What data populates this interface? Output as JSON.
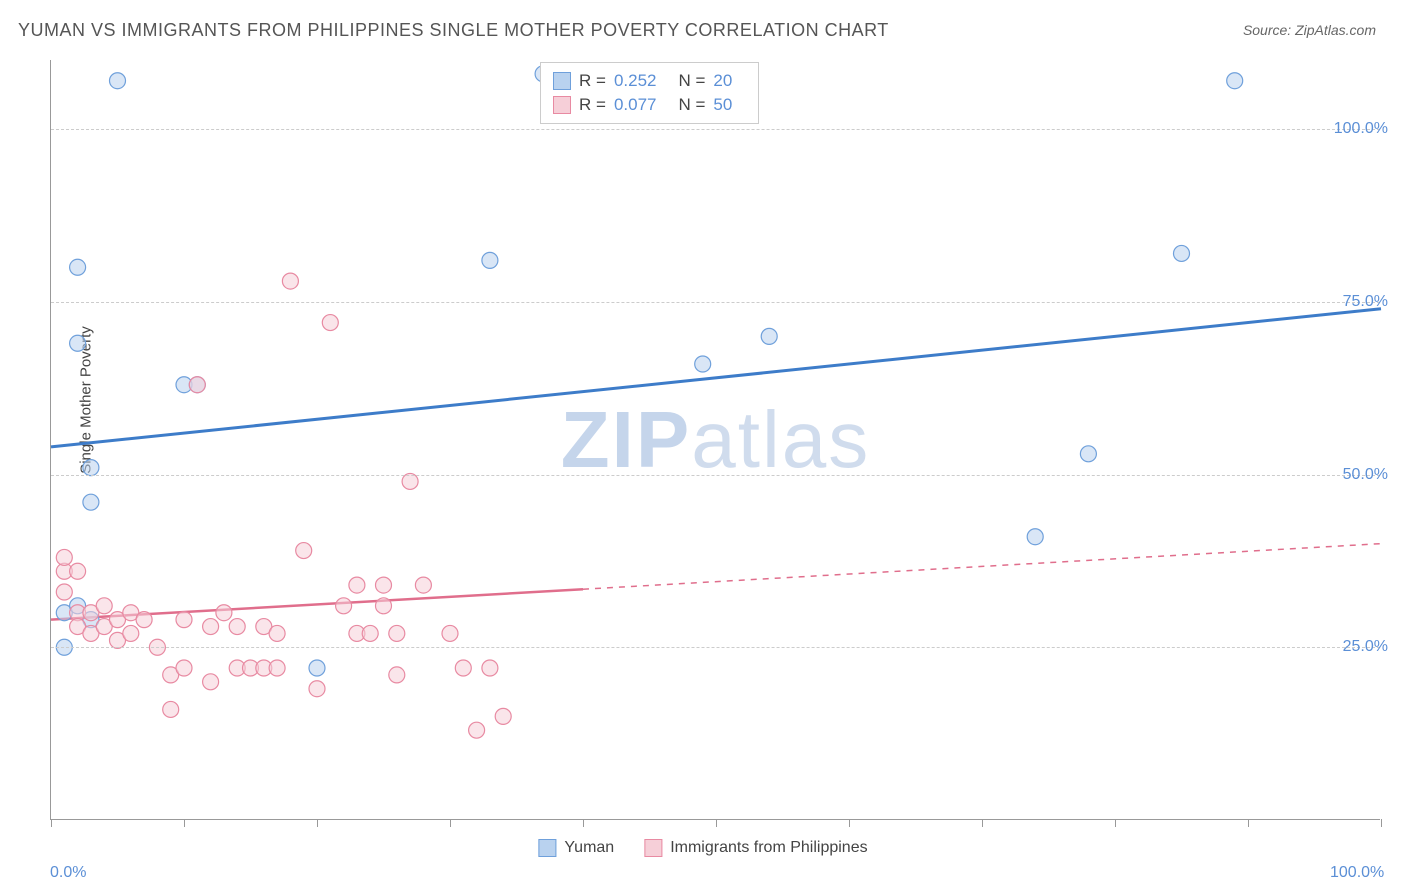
{
  "title": "YUMAN VS IMMIGRANTS FROM PHILIPPINES SINGLE MOTHER POVERTY CORRELATION CHART",
  "source": "Source: ZipAtlas.com",
  "watermark_a": "ZIP",
  "watermark_b": "atlas",
  "ylabel": "Single Mother Poverty",
  "chart": {
    "type": "scatter",
    "xlim": [
      0,
      100
    ],
    "ylim": [
      0,
      110
    ],
    "x_ticks": [
      0,
      10,
      20,
      30,
      40,
      50,
      60,
      70,
      80,
      90,
      100
    ],
    "y_gridlines": [
      25,
      50,
      75,
      100
    ],
    "y_tick_labels": [
      "25.0%",
      "50.0%",
      "75.0%",
      "100.0%"
    ],
    "x_tick_labels": {
      "0": "0.0%",
      "100": "100.0%"
    },
    "background_color": "#ffffff",
    "grid_color": "#cccccc",
    "axis_color": "#999999",
    "marker_radius": 8,
    "marker_opacity": 0.55,
    "marker_stroke_width": 1.2
  },
  "series": [
    {
      "name": "Yuman",
      "color_fill": "#b9d2ef",
      "color_stroke": "#6fa0db",
      "line_color": "#3d7cc9",
      "line_width": 3,
      "R": "0.252",
      "N": "20",
      "trend": {
        "x1": 0,
        "y1": 54,
        "x2": 100,
        "y2": 74,
        "solid_until": 100
      },
      "points": [
        [
          5,
          107
        ],
        [
          2,
          80
        ],
        [
          2,
          69
        ],
        [
          3,
          51
        ],
        [
          3,
          46
        ],
        [
          1,
          30
        ],
        [
          2,
          31
        ],
        [
          3,
          29
        ],
        [
          1,
          25
        ],
        [
          10,
          63
        ],
        [
          11,
          63
        ],
        [
          37,
          108
        ],
        [
          33,
          81
        ],
        [
          20,
          22
        ],
        [
          49,
          66
        ],
        [
          54,
          70
        ],
        [
          78,
          53
        ],
        [
          74,
          41
        ],
        [
          85,
          82
        ],
        [
          89,
          107
        ]
      ]
    },
    {
      "name": "Immigrants from Philippines",
      "color_fill": "#f6cfd8",
      "color_stroke": "#e88aa2",
      "line_color": "#e06e8c",
      "line_width": 2.5,
      "R": "0.077",
      "N": "50",
      "trend": {
        "x1": 0,
        "y1": 29,
        "x2": 100,
        "y2": 40,
        "solid_until": 40
      },
      "points": [
        [
          1,
          36
        ],
        [
          1,
          33
        ],
        [
          1,
          38
        ],
        [
          2,
          36
        ],
        [
          2,
          30
        ],
        [
          2,
          28
        ],
        [
          3,
          30
        ],
        [
          3,
          27
        ],
        [
          4,
          31
        ],
        [
          4,
          28
        ],
        [
          5,
          29
        ],
        [
          5,
          26
        ],
        [
          6,
          30
        ],
        [
          6,
          27
        ],
        [
          7,
          29
        ],
        [
          8,
          25
        ],
        [
          9,
          21
        ],
        [
          9,
          16
        ],
        [
          10,
          29
        ],
        [
          10,
          22
        ],
        [
          11,
          63
        ],
        [
          12,
          20
        ],
        [
          12,
          28
        ],
        [
          13,
          30
        ],
        [
          14,
          22
        ],
        [
          14,
          28
        ],
        [
          15,
          22
        ],
        [
          16,
          28
        ],
        [
          16,
          22
        ],
        [
          17,
          27
        ],
        [
          17,
          22
        ],
        [
          18,
          78
        ],
        [
          19,
          39
        ],
        [
          20,
          19
        ],
        [
          21,
          72
        ],
        [
          22,
          31
        ],
        [
          23,
          34
        ],
        [
          23,
          27
        ],
        [
          24,
          27
        ],
        [
          25,
          34
        ],
        [
          25,
          31
        ],
        [
          26,
          27
        ],
        [
          26,
          21
        ],
        [
          27,
          49
        ],
        [
          28,
          34
        ],
        [
          30,
          27
        ],
        [
          31,
          22
        ],
        [
          32,
          13
        ],
        [
          34,
          15
        ],
        [
          33,
          22
        ]
      ]
    }
  ],
  "bottom_legend": [
    "Yuman",
    "Immigrants from Philippines"
  ],
  "stats_labels": {
    "R": "R =",
    "N": "N ="
  }
}
